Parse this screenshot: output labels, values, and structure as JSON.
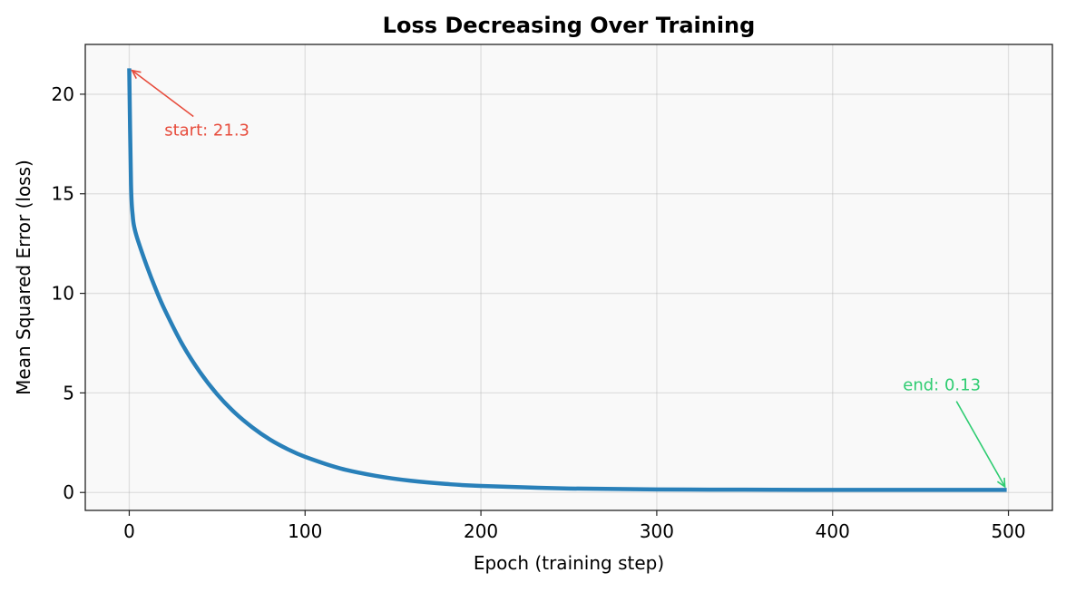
{
  "chart_data": {
    "type": "line",
    "title": "Loss Decreasing Over Training",
    "xlabel": "Epoch (training step)",
    "ylabel": "Mean Squared Error (loss)",
    "xlim": [
      -25,
      525
    ],
    "ylim": [
      -0.9,
      22.5
    ],
    "xticks": [
      0,
      100,
      200,
      300,
      400,
      500
    ],
    "yticks": [
      0,
      5,
      10,
      15,
      20
    ],
    "grid": true,
    "series": [
      {
        "color": "#2980b9",
        "x": [
          0,
          1,
          2,
          3,
          5,
          10,
          15,
          20,
          30,
          40,
          50,
          60,
          70,
          80,
          90,
          100,
          120,
          140,
          160,
          180,
          200,
          250,
          300,
          350,
          400,
          450,
          499
        ],
        "y": [
          21.3,
          15.48,
          13.87,
          13.27,
          12.64,
          11.37,
          10.23,
          9.21,
          7.47,
          6.07,
          4.93,
          4.01,
          3.27,
          2.66,
          2.18,
          1.79,
          1.21,
          0.84,
          0.59,
          0.43,
          0.33,
          0.2,
          0.15,
          0.14,
          0.13,
          0.13,
          0.13
        ]
      }
    ],
    "annotations": [
      {
        "text": "start: 21.3",
        "point": [
          0,
          21.3
        ],
        "text_at": [
          20,
          18.2
        ],
        "color": "#e74c3c"
      },
      {
        "text": "end: 0.13",
        "point": [
          499,
          0.13
        ],
        "text_at": [
          440,
          5.4
        ],
        "color": "#2ecc71"
      }
    ],
    "axes_background": "#f9f9f9"
  }
}
